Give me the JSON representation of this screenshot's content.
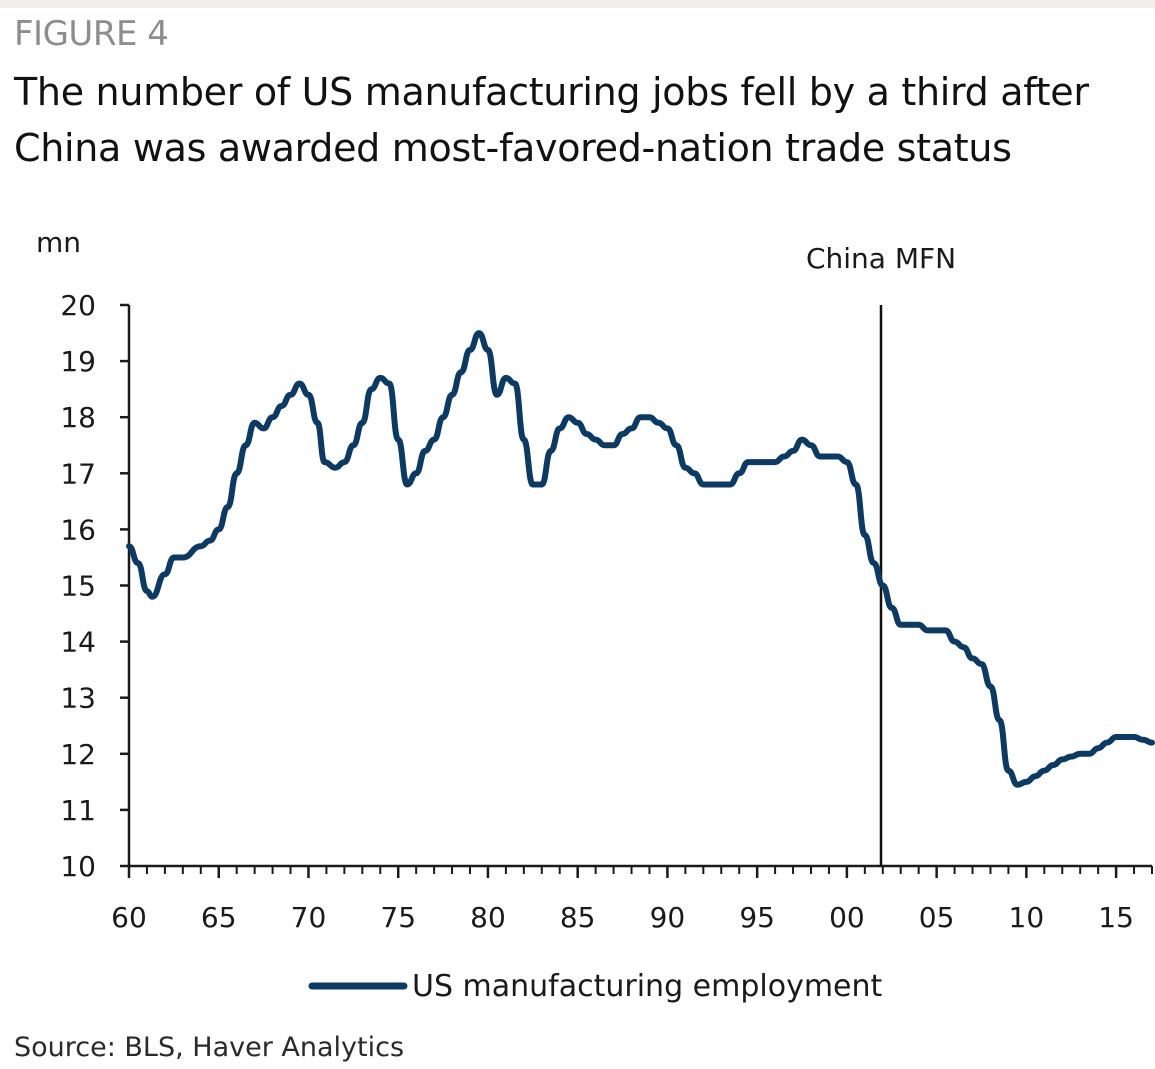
{
  "figure_label": "FIGURE 4",
  "title": "The number of US manufacturing jobs fell by a third after China was awarded most-favored-nation trade status",
  "source": "Source: BLS, Haver Analytics",
  "colors": {
    "series": "#0d3a63",
    "axis": "#1a1a1a",
    "text": "#1a1a1a",
    "muted": "#8d8d8d"
  },
  "chart_data": {
    "type": "line",
    "title": "The number of US manufacturing jobs fell by a third after China was awarded most-favored-nation trade status",
    "ylabel": "mn",
    "xlabel": "",
    "ylim": [
      10,
      20
    ],
    "xlim": [
      1960,
      2017
    ],
    "yticks": [
      10,
      11,
      12,
      13,
      14,
      15,
      16,
      17,
      18,
      19,
      20
    ],
    "xticks": [
      {
        "value": 1960,
        "label": "60"
      },
      {
        "value": 1965,
        "label": "65"
      },
      {
        "value": 1970,
        "label": "70"
      },
      {
        "value": 1975,
        "label": "75"
      },
      {
        "value": 1980,
        "label": "80"
      },
      {
        "value": 1985,
        "label": "85"
      },
      {
        "value": 1990,
        "label": "90"
      },
      {
        "value": 1995,
        "label": "95"
      },
      {
        "value": 2000,
        "label": "00"
      },
      {
        "value": 2005,
        "label": "05"
      },
      {
        "value": 2010,
        "label": "10"
      },
      {
        "value": 2015,
        "label": "15"
      }
    ],
    "annotation": {
      "label": "China MFN",
      "x": 2001.9
    },
    "legend": "bottom-center",
    "series": [
      {
        "name": "US manufacturing employment",
        "x": [
          1960,
          1960.5,
          1961,
          1961.3,
          1962,
          1962.5,
          1963,
          1964,
          1964.5,
          1965,
          1965.5,
          1966,
          1966.5,
          1967,
          1967.5,
          1968,
          1968.5,
          1969,
          1969.5,
          1970,
          1970.5,
          1970.9,
          1971.5,
          1972,
          1972.5,
          1973,
          1973.5,
          1974,
          1974.5,
          1975,
          1975.5,
          1976,
          1976.5,
          1977,
          1977.5,
          1978,
          1978.5,
          1979,
          1979.5,
          1980,
          1980.5,
          1981,
          1981.5,
          1982,
          1982.5,
          1983,
          1983.5,
          1984,
          1984.5,
          1985,
          1985.5,
          1986,
          1986.5,
          1987,
          1987.5,
          1988,
          1988.5,
          1989,
          1989.5,
          1990,
          1990.5,
          1991,
          1991.5,
          1992,
          1992.5,
          1993,
          1993.5,
          1994,
          1994.5,
          1995,
          1995.5,
          1996,
          1996.5,
          1997,
          1997.5,
          1998,
          1998.5,
          1999,
          1999.5,
          2000,
          2000.5,
          2001,
          2001.5,
          2002,
          2002.5,
          2003,
          2003.5,
          2004,
          2004.5,
          2005,
          2005.5,
          2006,
          2006.5,
          2007,
          2007.5,
          2008,
          2008.5,
          2009,
          2009.5,
          2010,
          2010.5,
          2011,
          2011.5,
          2012,
          2012.5,
          2013,
          2013.5,
          2014,
          2014.5,
          2015,
          2015.5,
          2016,
          2016.5,
          2017
        ],
        "values": [
          15.7,
          15.4,
          14.9,
          14.8,
          15.2,
          15.5,
          15.5,
          15.7,
          15.8,
          16.0,
          16.4,
          17.0,
          17.5,
          17.9,
          17.8,
          18.0,
          18.2,
          18.4,
          18.6,
          18.4,
          17.9,
          17.2,
          17.1,
          17.2,
          17.5,
          17.9,
          18.5,
          18.7,
          18.6,
          17.6,
          16.8,
          17.0,
          17.4,
          17.6,
          18.0,
          18.4,
          18.8,
          19.2,
          19.5,
          19.2,
          18.4,
          18.7,
          18.6,
          17.6,
          16.8,
          16.8,
          17.4,
          17.8,
          18.0,
          17.9,
          17.7,
          17.6,
          17.5,
          17.5,
          17.7,
          17.8,
          18.0,
          18.0,
          17.9,
          17.8,
          17.5,
          17.1,
          17.0,
          16.8,
          16.8,
          16.8,
          16.8,
          17.0,
          17.2,
          17.2,
          17.2,
          17.2,
          17.3,
          17.4,
          17.6,
          17.5,
          17.3,
          17.3,
          17.3,
          17.2,
          16.8,
          15.9,
          15.4,
          15.0,
          14.6,
          14.3,
          14.3,
          14.3,
          14.2,
          14.2,
          14.2,
          14.0,
          13.9,
          13.7,
          13.6,
          13.2,
          12.6,
          11.7,
          11.45,
          11.5,
          11.6,
          11.7,
          11.8,
          11.9,
          11.95,
          12.0,
          12.0,
          12.1,
          12.2,
          12.3,
          12.3,
          12.3,
          12.25,
          12.2
        ]
      }
    ]
  }
}
